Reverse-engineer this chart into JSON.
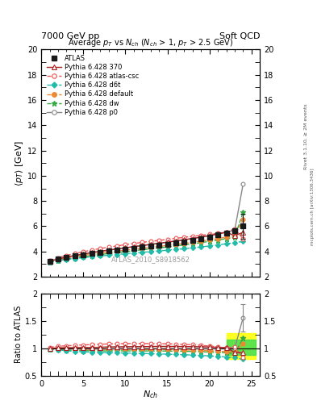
{
  "title_top_left": "7000 GeV pp",
  "title_top_right": "Soft QCD",
  "plot_title": "Average $p_T$ vs $N_{ch}$ ($N_{ch}$ > 1, $p_T$ > 2.5 GeV)",
  "ylabel_main": "$\\langle p_T \\rangle$ [GeV]",
  "ylabel_ratio": "Ratio to ATLAS",
  "xlabel": "$N_{ch}$",
  "watermark": "ATLAS_2010_S8918562",
  "rivet_label": "Rivet 3.1.10, ≥ 2M events",
  "arxiv_label": "mcplots.cern.ch [arXiv:1306.3436]",
  "xdata": [
    1,
    2,
    3,
    4,
    5,
    6,
    7,
    8,
    9,
    10,
    11,
    12,
    13,
    14,
    15,
    16,
    17,
    18,
    19,
    20,
    21,
    22,
    23,
    24
  ],
  "atlas_y": [
    3.22,
    3.38,
    3.52,
    3.64,
    3.75,
    3.85,
    3.94,
    4.02,
    4.1,
    4.18,
    4.26,
    4.34,
    4.42,
    4.5,
    4.59,
    4.68,
    4.78,
    4.89,
    5.01,
    5.15,
    5.3,
    5.47,
    5.67,
    6.0
  ],
  "atlas_yerr": [
    0.05,
    0.04,
    0.04,
    0.04,
    0.04,
    0.04,
    0.04,
    0.04,
    0.04,
    0.04,
    0.05,
    0.05,
    0.05,
    0.05,
    0.06,
    0.06,
    0.07,
    0.07,
    0.08,
    0.09,
    0.1,
    0.12,
    0.15,
    1.0
  ],
  "p370_y": [
    3.22,
    3.4,
    3.55,
    3.68,
    3.8,
    3.91,
    4.01,
    4.11,
    4.2,
    4.29,
    4.38,
    4.47,
    4.56,
    4.65,
    4.74,
    4.83,
    4.93,
    5.03,
    5.14,
    5.26,
    5.39,
    5.53,
    5.25,
    5.52
  ],
  "atlas_csc_y": [
    3.28,
    3.5,
    3.68,
    3.84,
    3.98,
    4.11,
    4.23,
    4.34,
    4.44,
    4.54,
    4.63,
    4.72,
    4.8,
    4.88,
    4.96,
    5.04,
    5.12,
    5.2,
    5.28,
    5.36,
    5.44,
    5.52,
    5.8,
    5.0
  ],
  "d6t_y": [
    3.18,
    3.28,
    3.36,
    3.44,
    3.51,
    3.58,
    3.64,
    3.7,
    3.76,
    3.82,
    3.88,
    3.93,
    3.99,
    4.04,
    4.1,
    4.16,
    4.22,
    4.29,
    4.36,
    4.44,
    4.52,
    4.61,
    4.7,
    4.8
  ],
  "default_y": [
    3.2,
    3.35,
    3.48,
    3.59,
    3.69,
    3.78,
    3.87,
    3.95,
    4.03,
    4.1,
    4.18,
    4.25,
    4.33,
    4.4,
    4.48,
    4.56,
    4.64,
    4.73,
    4.82,
    4.92,
    5.03,
    5.14,
    5.26,
    6.52
  ],
  "dw_y": [
    3.18,
    3.3,
    3.4,
    3.5,
    3.59,
    3.67,
    3.75,
    3.83,
    3.91,
    3.98,
    4.06,
    4.13,
    4.21,
    4.28,
    4.36,
    4.44,
    4.52,
    4.61,
    4.7,
    4.8,
    4.91,
    5.02,
    5.14,
    7.1
  ],
  "p0_y": [
    3.22,
    3.4,
    3.55,
    3.68,
    3.8,
    3.91,
    4.01,
    4.11,
    4.2,
    4.29,
    4.38,
    4.47,
    4.56,
    4.65,
    4.74,
    4.83,
    4.93,
    5.03,
    5.14,
    5.26,
    5.39,
    5.53,
    5.68,
    9.35
  ],
  "color_atlas": "#1a1a1a",
  "color_p370": "#aa2222",
  "color_atlas_csc": "#ee5555",
  "color_d6t": "#22bbaa",
  "color_default": "#ee8833",
  "color_dw": "#33aa44",
  "color_p0": "#888888",
  "ylim_main": [
    2,
    20
  ],
  "ylim_ratio": [
    0.5,
    2.0
  ],
  "xlim": [
    0,
    26
  ]
}
